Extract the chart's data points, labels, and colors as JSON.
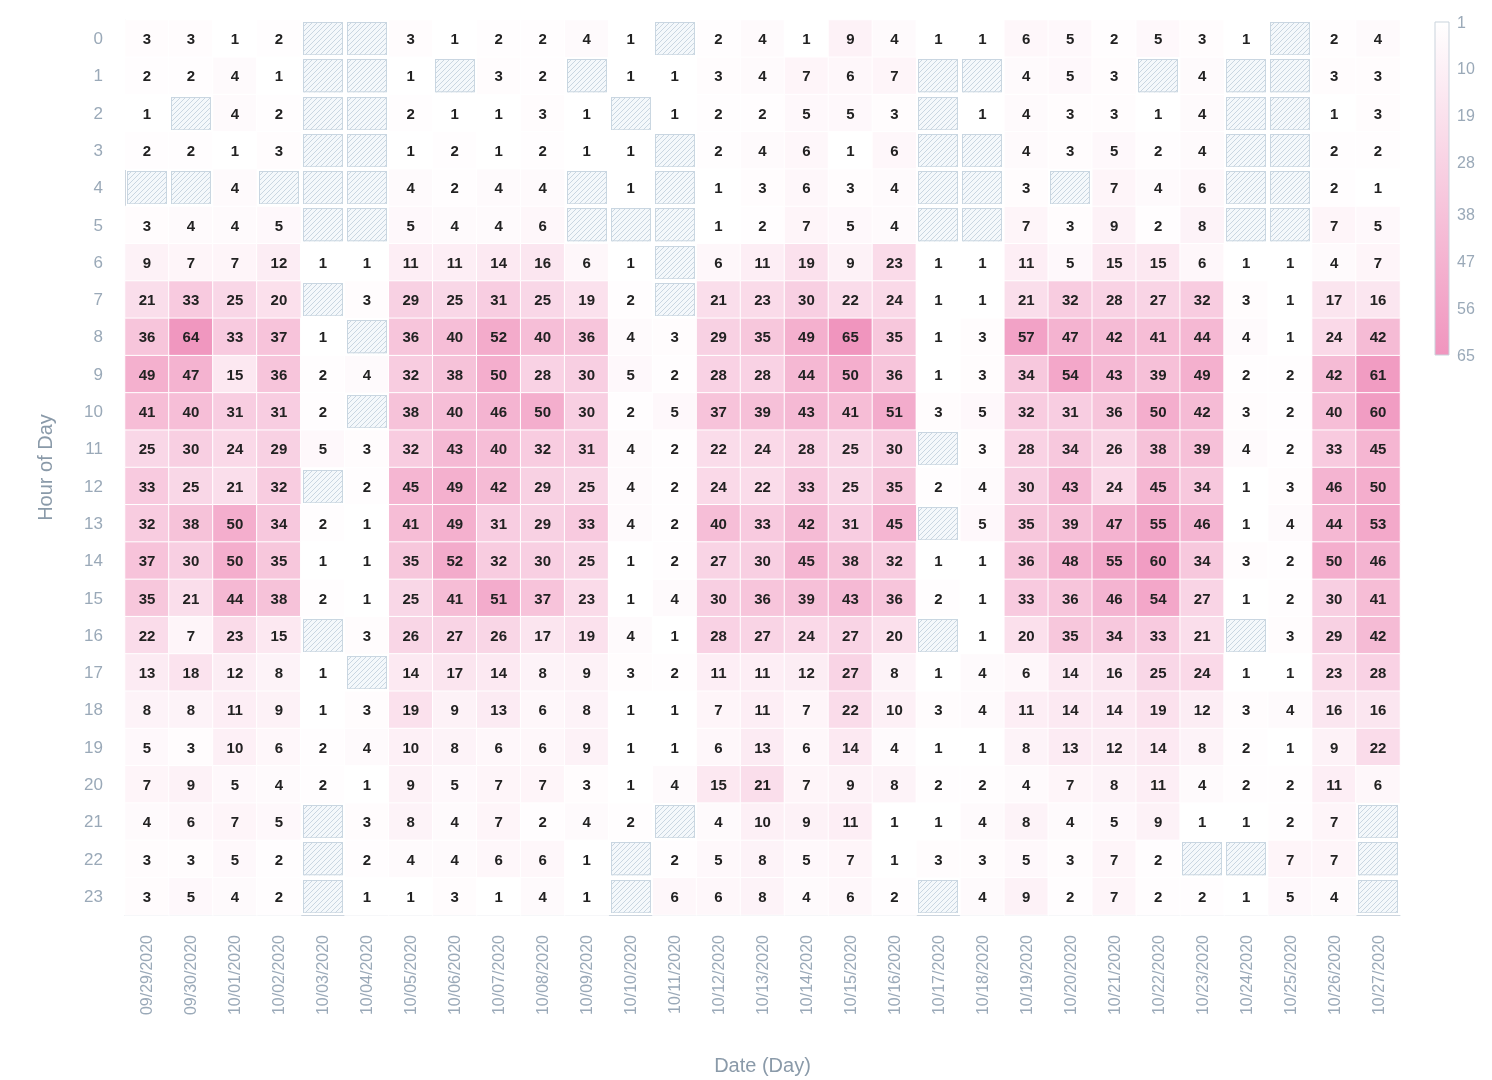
{
  "chart_data": {
    "type": "heatmap",
    "xlabel": "Date (Day)",
    "ylabel": "Hour of Day",
    "data_labels": true,
    "clim": [
      1,
      65
    ],
    "cticks": [
      1,
      10,
      19,
      28,
      38,
      47,
      56,
      65
    ],
    "colors": [
      "#ffffff",
      "#f095be"
    ],
    "categories": [
      "09/29/2020",
      "09/30/2020",
      "10/01/2020",
      "10/02/2020",
      "10/03/2020",
      "10/04/2020",
      "10/05/2020",
      "10/06/2020",
      "10/07/2020",
      "10/08/2020",
      "10/09/2020",
      "10/10/2020",
      "10/11/2020",
      "10/12/2020",
      "10/13/2020",
      "10/14/2020",
      "10/15/2020",
      "10/16/2020",
      "10/17/2020",
      "10/18/2020",
      "10/19/2020",
      "10/20/2020",
      "10/21/2020",
      "10/22/2020",
      "10/23/2020",
      "10/24/2020",
      "10/25/2020",
      "10/26/2020",
      "10/27/2020"
    ],
    "y_categories": [
      "0",
      "1",
      "2",
      "3",
      "4",
      "5",
      "6",
      "7",
      "8",
      "9",
      "10",
      "11",
      "12",
      "13",
      "14",
      "15",
      "16",
      "17",
      "18",
      "19",
      "20",
      "21",
      "22",
      "23"
    ],
    "cells": [
      [
        3,
        3,
        1,
        2,
        null,
        null,
        3,
        1,
        2,
        2,
        4,
        1,
        null,
        2,
        4,
        1,
        9,
        4,
        1,
        1,
        6,
        5,
        2,
        5,
        3,
        1,
        null,
        2,
        4
      ],
      [
        2,
        2,
        4,
        1,
        null,
        null,
        1,
        null,
        3,
        2,
        null,
        1,
        1,
        3,
        4,
        7,
        6,
        7,
        null,
        null,
        4,
        5,
        3,
        null,
        4,
        null,
        null,
        3,
        3
      ],
      [
        1,
        null,
        4,
        2,
        null,
        null,
        2,
        1,
        1,
        3,
        1,
        null,
        1,
        2,
        2,
        5,
        5,
        3,
        null,
        1,
        4,
        3,
        3,
        1,
        4,
        null,
        null,
        1,
        3
      ],
      [
        2,
        2,
        1,
        3,
        null,
        null,
        1,
        2,
        1,
        2,
        1,
        1,
        null,
        2,
        4,
        6,
        1,
        6,
        null,
        null,
        4,
        3,
        5,
        2,
        4,
        null,
        null,
        2,
        2
      ],
      [
        null,
        null,
        4,
        null,
        null,
        null,
        4,
        2,
        4,
        4,
        null,
        1,
        null,
        1,
        3,
        6,
        3,
        4,
        null,
        null,
        3,
        null,
        7,
        4,
        6,
        null,
        null,
        2,
        1
      ],
      [
        3,
        4,
        4,
        5,
        null,
        null,
        5,
        4,
        4,
        6,
        null,
        null,
        null,
        1,
        2,
        7,
        5,
        4,
        null,
        null,
        7,
        3,
        9,
        2,
        8,
        null,
        null,
        7,
        5
      ],
      [
        9,
        7,
        7,
        12,
        1,
        1,
        11,
        11,
        14,
        16,
        6,
        1,
        null,
        6,
        11,
        19,
        9,
        23,
        1,
        1,
        11,
        5,
        15,
        15,
        6,
        1,
        1,
        4,
        7
      ],
      [
        21,
        33,
        25,
        20,
        null,
        3,
        29,
        25,
        31,
        25,
        19,
        2,
        null,
        21,
        23,
        30,
        22,
        24,
        1,
        1,
        21,
        32,
        28,
        27,
        32,
        3,
        1,
        17,
        16
      ],
      [
        36,
        64,
        33,
        37,
        1,
        null,
        36,
        40,
        52,
        40,
        36,
        4,
        3,
        29,
        35,
        49,
        65,
        35,
        1,
        3,
        57,
        47,
        42,
        41,
        44,
        4,
        1,
        24,
        42
      ],
      [
        49,
        47,
        15,
        36,
        2,
        4,
        32,
        38,
        50,
        28,
        30,
        5,
        2,
        28,
        28,
        44,
        50,
        36,
        1,
        3,
        34,
        54,
        43,
        39,
        49,
        2,
        2,
        42,
        61
      ],
      [
        41,
        40,
        31,
        31,
        2,
        null,
        38,
        40,
        46,
        50,
        30,
        2,
        5,
        37,
        39,
        43,
        41,
        51,
        3,
        5,
        32,
        31,
        36,
        50,
        42,
        3,
        2,
        40,
        60
      ],
      [
        25,
        30,
        24,
        29,
        5,
        3,
        32,
        43,
        40,
        32,
        31,
        4,
        2,
        22,
        24,
        28,
        25,
        30,
        null,
        3,
        28,
        34,
        26,
        38,
        39,
        4,
        2,
        33,
        45
      ],
      [
        33,
        25,
        21,
        32,
        null,
        2,
        45,
        49,
        42,
        29,
        25,
        4,
        2,
        24,
        22,
        33,
        25,
        35,
        2,
        4,
        30,
        43,
        24,
        45,
        34,
        1,
        3,
        46,
        50
      ],
      [
        32,
        38,
        50,
        34,
        2,
        1,
        41,
        49,
        31,
        29,
        33,
        4,
        2,
        40,
        33,
        42,
        31,
        45,
        null,
        5,
        35,
        39,
        47,
        55,
        46,
        1,
        4,
        44,
        53
      ],
      [
        37,
        30,
        50,
        35,
        1,
        1,
        35,
        52,
        32,
        30,
        25,
        1,
        2,
        27,
        30,
        45,
        38,
        32,
        1,
        1,
        36,
        48,
        55,
        60,
        34,
        3,
        2,
        50,
        46
      ],
      [
        35,
        21,
        44,
        38,
        2,
        1,
        25,
        41,
        51,
        37,
        23,
        1,
        4,
        30,
        36,
        39,
        43,
        36,
        2,
        1,
        33,
        36,
        46,
        54,
        27,
        1,
        2,
        30,
        41
      ],
      [
        22,
        7,
        23,
        15,
        null,
        3,
        26,
        27,
        26,
        17,
        19,
        4,
        1,
        28,
        27,
        24,
        27,
        20,
        null,
        1,
        20,
        35,
        34,
        33,
        21,
        null,
        3,
        29,
        42
      ],
      [
        13,
        18,
        12,
        8,
        1,
        null,
        14,
        17,
        14,
        8,
        9,
        3,
        2,
        11,
        11,
        12,
        27,
        8,
        1,
        4,
        6,
        14,
        16,
        25,
        24,
        1,
        1,
        23,
        28
      ],
      [
        8,
        8,
        11,
        9,
        1,
        3,
        19,
        9,
        13,
        6,
        8,
        1,
        1,
        7,
        11,
        7,
        22,
        10,
        3,
        4,
        11,
        14,
        14,
        19,
        12,
        3,
        4,
        16,
        16
      ],
      [
        5,
        3,
        10,
        6,
        2,
        4,
        10,
        8,
        6,
        6,
        9,
        1,
        1,
        6,
        13,
        6,
        14,
        4,
        1,
        1,
        8,
        13,
        12,
        14,
        8,
        2,
        1,
        9,
        22
      ],
      [
        7,
        9,
        5,
        4,
        2,
        1,
        9,
        5,
        7,
        7,
        3,
        1,
        4,
        15,
        21,
        7,
        9,
        8,
        2,
        2,
        4,
        7,
        8,
        11,
        4,
        2,
        2,
        11,
        6
      ],
      [
        4,
        6,
        7,
        5,
        null,
        3,
        8,
        4,
        7,
        2,
        4,
        2,
        null,
        4,
        10,
        9,
        11,
        1,
        1,
        4,
        8,
        4,
        5,
        9,
        1,
        1,
        2,
        7,
        null
      ],
      [
        3,
        3,
        5,
        2,
        null,
        2,
        4,
        4,
        6,
        6,
        1,
        null,
        2,
        5,
        8,
        5,
        7,
        1,
        3,
        3,
        5,
        3,
        7,
        2,
        null,
        null,
        7,
        7,
        null
      ],
      [
        3,
        5,
        4,
        2,
        null,
        1,
        1,
        3,
        1,
        4,
        1,
        null,
        6,
        6,
        8,
        4,
        6,
        2,
        null,
        4,
        9,
        2,
        7,
        2,
        2,
        1,
        5,
        4,
        null
      ]
    ]
  }
}
